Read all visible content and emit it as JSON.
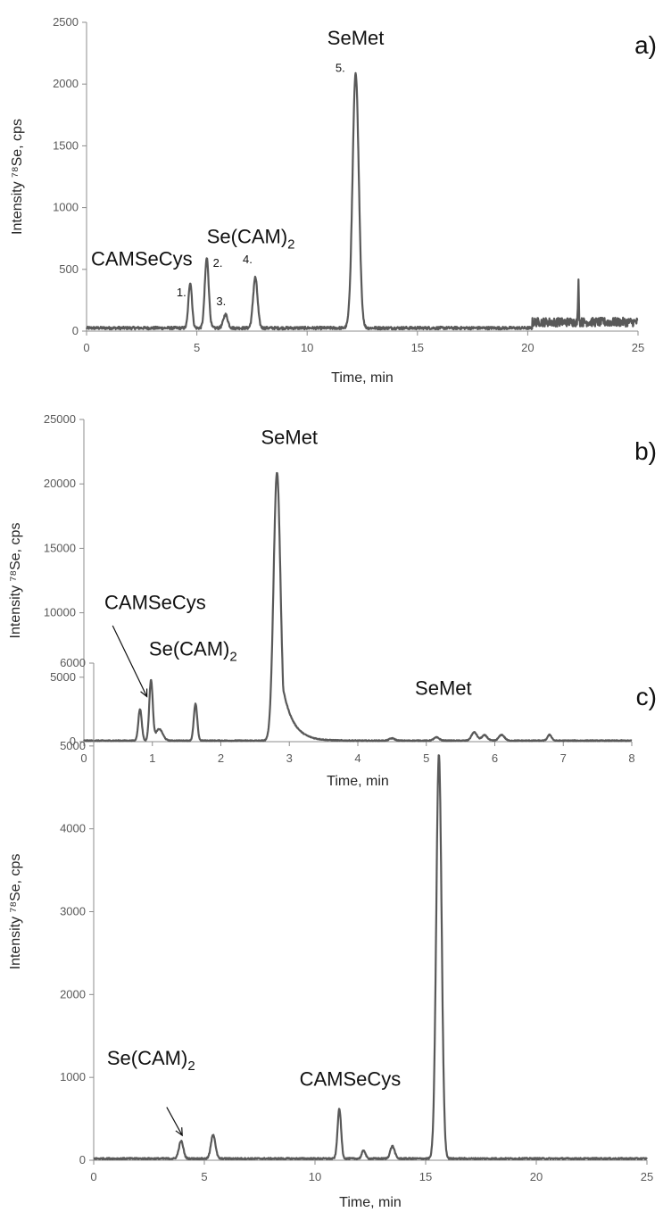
{
  "chart_data": [
    {
      "type": "line",
      "panel_label": "a)",
      "xlabel": "Time, min",
      "ylabel": "Intensity ⁷⁸Se, cps",
      "xlim": [
        0,
        25
      ],
      "ylim": [
        0,
        2500
      ],
      "xticks": [
        0,
        5,
        10,
        15,
        20,
        25
      ],
      "yticks": [
        0,
        500,
        1000,
        1500,
        2000,
        2500
      ],
      "grid": false,
      "baseline": 25,
      "noise_regions": [
        {
          "x": [
            20.2,
            25
          ],
          "level": 80
        }
      ],
      "peaks": [
        {
          "x": 4.7,
          "height": 370,
          "width": 0.08
        },
        {
          "x": 5.45,
          "height": 565,
          "width": 0.09
        },
        {
          "x": 6.3,
          "height": 110,
          "width": 0.1
        },
        {
          "x": 7.65,
          "height": 410,
          "width": 0.1
        },
        {
          "x": 12.2,
          "height": 2065,
          "width": 0.14
        },
        {
          "x": 22.3,
          "height": 330,
          "width": 0.02
        }
      ],
      "annotations": [
        {
          "text": "SeMet",
          "kind": "name",
          "x": 12.2,
          "y": 2320,
          "anchor": "middle"
        },
        {
          "text": "Se(CAM)",
          "sub": "2",
          "kind": "name",
          "x": 5.45,
          "y": 710,
          "anchor": "start"
        },
        {
          "text": "CAMSeCys",
          "kind": "name",
          "x": 0.2,
          "y": 530,
          "anchor": "start"
        },
        {
          "text": "1.",
          "kind": "num",
          "x": 4.3,
          "y": 280,
          "anchor": "middle"
        },
        {
          "text": "2.",
          "kind": "num",
          "x": 5.95,
          "y": 520,
          "anchor": "middle"
        },
        {
          "text": "3.",
          "kind": "num",
          "x": 6.1,
          "y": 210,
          "anchor": "middle"
        },
        {
          "text": "4.",
          "kind": "num",
          "x": 7.3,
          "y": 550,
          "anchor": "middle"
        },
        {
          "text": "5.",
          "kind": "num",
          "x": 11.5,
          "y": 2100,
          "anchor": "middle"
        }
      ],
      "arrows": []
    },
    {
      "type": "line",
      "panel_label": "b)",
      "xlabel": "Time, min",
      "ylabel": "Intensity ⁷⁸Se, cps",
      "xlim": [
        0,
        8
      ],
      "ylim": [
        0,
        25000
      ],
      "xticks": [
        0,
        1,
        2,
        3,
        4,
        5,
        6,
        7,
        8
      ],
      "yticks": [
        0,
        5000,
        10000,
        15000,
        20000,
        25000
      ],
      "grid": false,
      "baseline": 80,
      "noise_regions": [],
      "peaks": [
        {
          "x": 0.82,
          "height": 2450,
          "width": 0.025
        },
        {
          "x": 0.98,
          "height": 4700,
          "width": 0.025
        },
        {
          "x": 1.1,
          "height": 900,
          "width": 0.05
        },
        {
          "x": 1.63,
          "height": 2850,
          "width": 0.025
        },
        {
          "x": 2.82,
          "height": 20800,
          "width": 0.05,
          "tail": 0.15
        },
        {
          "x": 4.5,
          "height": 180,
          "width": 0.04
        },
        {
          "x": 5.15,
          "height": 250,
          "width": 0.04
        },
        {
          "x": 5.7,
          "height": 650,
          "width": 0.04
        },
        {
          "x": 5.85,
          "height": 420,
          "width": 0.04
        },
        {
          "x": 6.1,
          "height": 450,
          "width": 0.04
        },
        {
          "x": 6.8,
          "height": 450,
          "width": 0.03
        }
      ],
      "annotations": [
        {
          "text": "SeMet",
          "kind": "name",
          "x": 3.0,
          "y": 23100,
          "anchor": "middle"
        },
        {
          "text": "CAMSeCys",
          "kind": "name",
          "x": 0.3,
          "y": 10300,
          "anchor": "start"
        },
        {
          "text": "Se(CAM)",
          "sub": "2",
          "kind": "name",
          "x": 0.95,
          "y": 6700,
          "anchor": "start"
        }
      ],
      "arrows": [
        {
          "from": [
            0.42,
            9000
          ],
          "to": [
            0.92,
            3500
          ]
        }
      ]
    },
    {
      "type": "line",
      "panel_label": "c)",
      "xlabel": "Time, min",
      "ylabel": "Intensity ⁷⁸Se, cps",
      "xlim": [
        0,
        25
      ],
      "ylim": [
        0,
        6000
      ],
      "xticks": [
        0,
        5,
        10,
        15,
        20,
        25
      ],
      "yticks": [
        0,
        1000,
        2000,
        3000,
        4000,
        5000,
        6000
      ],
      "grid": false,
      "baseline": 20,
      "noise_regions": [],
      "peaks": [
        {
          "x": 3.95,
          "height": 210,
          "width": 0.1
        },
        {
          "x": 5.4,
          "height": 290,
          "width": 0.1
        },
        {
          "x": 11.1,
          "height": 600,
          "width": 0.08
        },
        {
          "x": 12.2,
          "height": 100,
          "width": 0.08
        },
        {
          "x": 13.5,
          "height": 150,
          "width": 0.1
        },
        {
          "x": 15.6,
          "height": 4880,
          "width": 0.12
        }
      ],
      "annotations": [
        {
          "text": "SeMet",
          "kind": "name",
          "x": 15.8,
          "y": 5620,
          "anchor": "middle"
        },
        {
          "text": "CAMSeCys",
          "kind": "name",
          "x": 9.3,
          "y": 900,
          "anchor": "start"
        },
        {
          "text": "Se(CAM)",
          "sub": "2",
          "kind": "name",
          "x": 0.6,
          "y": 1150,
          "anchor": "start"
        }
      ],
      "arrows": [
        {
          "from": [
            3.3,
            640
          ],
          "to": [
            4.0,
            300
          ]
        }
      ]
    }
  ]
}
